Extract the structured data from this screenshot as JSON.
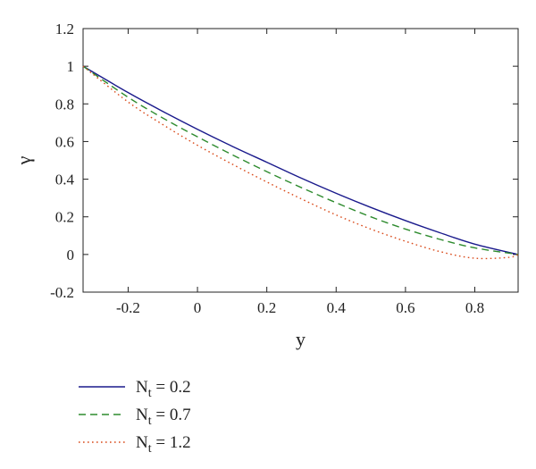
{
  "chart_data": {
    "type": "line",
    "xlabel": "y",
    "ylabel": "γ",
    "xlim": [
      -0.33,
      0.925
    ],
    "ylim": [
      -0.2,
      1.2
    ],
    "xticks": [
      -0.2,
      0,
      0.2,
      0.4,
      0.6,
      0.8
    ],
    "yticks": [
      -0.2,
      0,
      0.2,
      0.4,
      0.6,
      0.8,
      1,
      1.2
    ],
    "grid": false,
    "legend_position": "bottom-left, below plot",
    "series": [
      {
        "name": "0.2",
        "color": "#1a1a8c",
        "dash": "solid",
        "x": [
          -0.33,
          -0.2,
          -0.1,
          0,
          0.1,
          0.2,
          0.3,
          0.4,
          0.5,
          0.6,
          0.7,
          0.8,
          0.925
        ],
        "y": [
          1.0,
          0.86,
          0.76,
          0.665,
          0.575,
          0.49,
          0.405,
          0.325,
          0.25,
          0.18,
          0.115,
          0.055,
          0.0
        ]
      },
      {
        "name": "0.7",
        "color": "#2e8b2e",
        "dash": "dashed",
        "x": [
          -0.33,
          -0.2,
          -0.1,
          0,
          0.1,
          0.2,
          0.3,
          0.4,
          0.5,
          0.6,
          0.7,
          0.8,
          0.925
        ],
        "y": [
          1.0,
          0.835,
          0.725,
          0.625,
          0.53,
          0.44,
          0.355,
          0.275,
          0.2,
          0.135,
          0.08,
          0.035,
          0.0
        ]
      },
      {
        "name": "1.2",
        "color": "#d94a1a",
        "dash": "dotted",
        "x": [
          -0.33,
          -0.2,
          -0.1,
          0,
          0.1,
          0.2,
          0.3,
          0.4,
          0.5,
          0.6,
          0.7,
          0.8,
          0.9,
          0.925
        ],
        "y": [
          1.0,
          0.81,
          0.69,
          0.58,
          0.48,
          0.385,
          0.295,
          0.21,
          0.135,
          0.07,
          0.015,
          -0.02,
          -0.015,
          0.0
        ]
      }
    ]
  },
  "legend": {
    "prefix": "N",
    "subscript": "t",
    "equals": " = "
  }
}
